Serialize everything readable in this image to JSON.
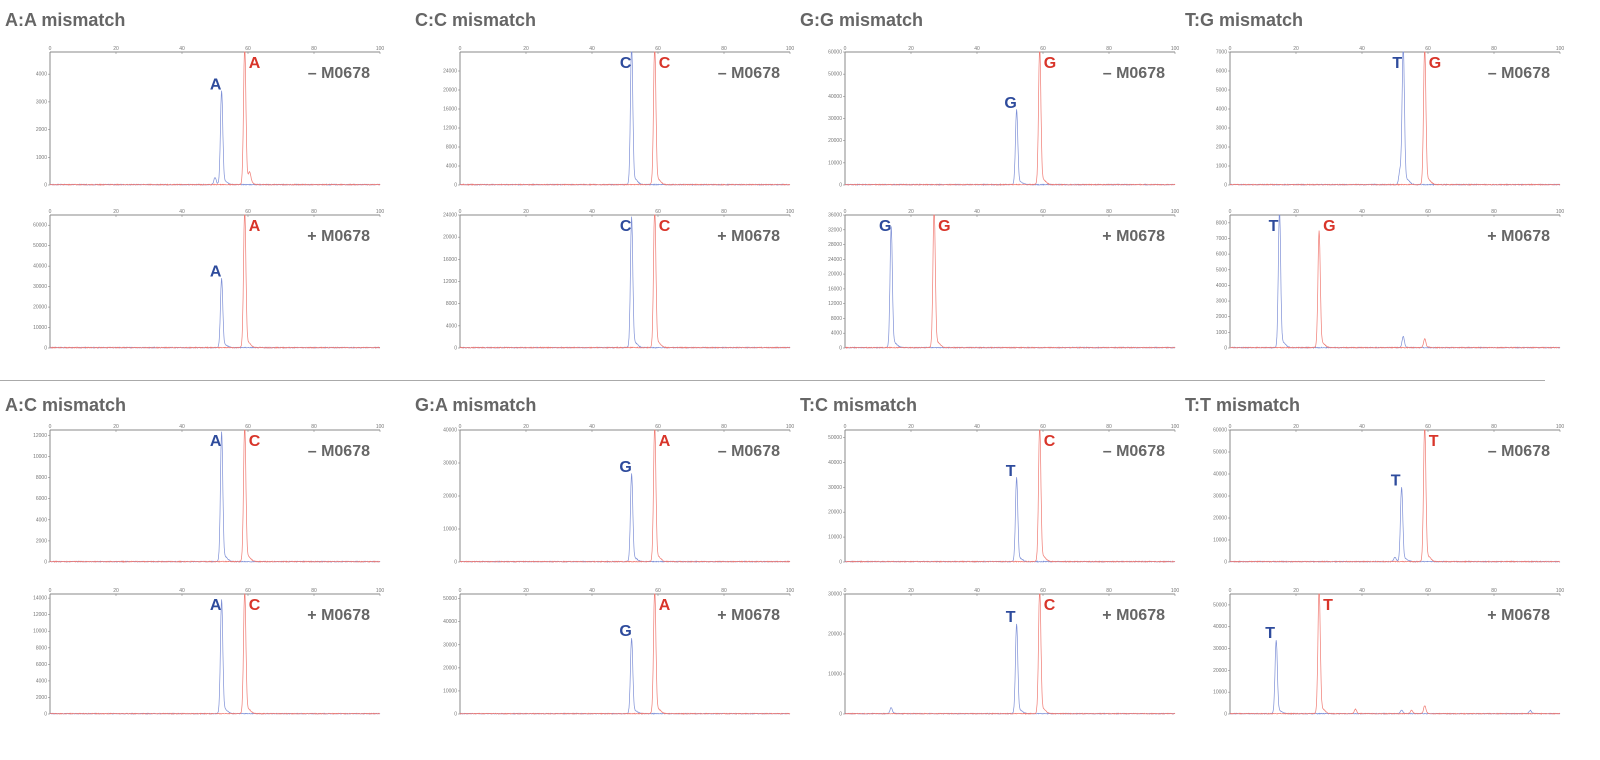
{
  "colors": {
    "blue": "#2e4b9c",
    "red": "#d8352a",
    "title": "#666666"
  },
  "chart_data": [
    {
      "title": "A:A mismatch",
      "plots": [
        {
          "type": "line",
          "condition": "– M0678",
          "xlim": [
            0,
            100
          ],
          "xticks": [
            0,
            20,
            40,
            60,
            80,
            100
          ],
          "ylim": [
            0,
            4800
          ],
          "yticks": [
            0,
            1000,
            2000,
            3000,
            4000
          ],
          "blue_peaks": [
            [
              52,
              3300
            ],
            [
              50,
              250
            ]
          ],
          "red_peaks": [
            [
              59,
              4900
            ],
            [
              60.5,
              300
            ]
          ],
          "labels": [
            {
              "text": "A",
              "color": "blue",
              "x": 52
            },
            {
              "text": "A",
              "color": "red",
              "x": 59
            }
          ]
        },
        {
          "type": "line",
          "condition": "+ M0678",
          "xlim": [
            0,
            100
          ],
          "xticks": [
            0,
            20,
            40,
            60,
            80,
            100
          ],
          "ylim": [
            0,
            65000
          ],
          "yticks": [
            0,
            10000,
            20000,
            30000,
            40000,
            50000,
            60000
          ],
          "blue_peaks": [
            [
              52,
              33000
            ]
          ],
          "red_peaks": [
            [
              59,
              66000
            ]
          ],
          "labels": [
            {
              "text": "A",
              "color": "blue",
              "x": 52
            },
            {
              "text": "A",
              "color": "red",
              "x": 59
            }
          ]
        }
      ]
    },
    {
      "title": "C:C mismatch",
      "plots": [
        {
          "type": "line",
          "condition": "– M0678",
          "xlim": [
            0,
            100
          ],
          "xticks": [
            0,
            20,
            40,
            60,
            80,
            100
          ],
          "ylim": [
            0,
            28000
          ],
          "yticks": [
            0,
            4000,
            8000,
            12000,
            16000,
            20000,
            24000
          ],
          "blue_peaks": [
            [
              52,
              29000
            ]
          ],
          "red_peaks": [
            [
              59,
              29000
            ]
          ],
          "labels": [
            {
              "text": "C",
              "color": "blue",
              "x": 52
            },
            {
              "text": "C",
              "color": "red",
              "x": 59
            }
          ]
        },
        {
          "type": "line",
          "condition": "+ M0678",
          "xlim": [
            0,
            100
          ],
          "xticks": [
            0,
            20,
            40,
            60,
            80,
            100
          ],
          "ylim": [
            0,
            24000
          ],
          "yticks": [
            0,
            4000,
            8000,
            12000,
            16000,
            20000,
            24000
          ],
          "blue_peaks": [
            [
              52,
              23000
            ]
          ],
          "red_peaks": [
            [
              59,
              25000
            ]
          ],
          "labels": [
            {
              "text": "C",
              "color": "blue",
              "x": 52
            },
            {
              "text": "C",
              "color": "red",
              "x": 59
            }
          ]
        }
      ]
    },
    {
      "title": "G:G mismatch",
      "plots": [
        {
          "type": "line",
          "condition": "– M0678",
          "xlim": [
            0,
            100
          ],
          "xticks": [
            0,
            20,
            40,
            60,
            80,
            100
          ],
          "ylim": [
            0,
            60000
          ],
          "yticks": [
            0,
            10000,
            20000,
            30000,
            40000,
            50000,
            60000
          ],
          "blue_peaks": [
            [
              52,
              33000
            ]
          ],
          "red_peaks": [
            [
              59,
              61000
            ]
          ],
          "labels": [
            {
              "text": "G",
              "color": "blue",
              "x": 52
            },
            {
              "text": "G",
              "color": "red",
              "x": 59
            }
          ]
        },
        {
          "type": "line",
          "condition": "+ M0678",
          "xlim": [
            0,
            100
          ],
          "xticks": [
            0,
            20,
            40,
            60,
            80,
            100
          ],
          "ylim": [
            0,
            36000
          ],
          "yticks": [
            0,
            4000,
            8000,
            12000,
            16000,
            20000,
            24000,
            28000,
            32000,
            36000
          ],
          "blue_peaks": [
            [
              14,
              32000
            ]
          ],
          "red_peaks": [
            [
              27,
              37000
            ]
          ],
          "labels": [
            {
              "text": "G",
              "color": "blue",
              "x": 14
            },
            {
              "text": "G",
              "color": "red",
              "x": 27
            }
          ]
        }
      ]
    },
    {
      "title": "T:G mismatch",
      "plots": [
        {
          "type": "line",
          "condition": "– M0678",
          "xlim": [
            0,
            100
          ],
          "xticks": [
            0,
            20,
            40,
            60,
            80,
            100
          ],
          "ylim": [
            0,
            7000
          ],
          "yticks": [
            0,
            1000,
            2000,
            3000,
            4000,
            5000,
            6000,
            7000
          ],
          "blue_peaks": [
            [
              52.5,
              7200
            ],
            [
              51.5,
              700
            ]
          ],
          "red_peaks": [
            [
              59,
              7100
            ]
          ],
          "labels": [
            {
              "text": "T",
              "color": "blue",
              "x": 52.5
            },
            {
              "text": "G",
              "color": "red",
              "x": 59
            }
          ]
        },
        {
          "type": "line",
          "condition": "+ M0678",
          "xlim": [
            0,
            100
          ],
          "xticks": [
            0,
            20,
            40,
            60,
            80,
            100
          ],
          "ylim": [
            0,
            8500
          ],
          "yticks": [
            0,
            1000,
            2000,
            3000,
            4000,
            5000,
            6000,
            7000,
            8000
          ],
          "blue_peaks": [
            [
              15,
              8600
            ],
            [
              52.5,
              700
            ]
          ],
          "red_peaks": [
            [
              27,
              7300
            ],
            [
              59,
              550
            ]
          ],
          "labels": [
            {
              "text": "T",
              "color": "blue",
              "x": 15
            },
            {
              "text": "G",
              "color": "red",
              "x": 27
            }
          ]
        }
      ]
    },
    {
      "title": "A:C mismatch",
      "plots": [
        {
          "type": "line",
          "condition": "– M0678",
          "xlim": [
            0,
            100
          ],
          "xticks": [
            0,
            20,
            40,
            60,
            80,
            100
          ],
          "ylim": [
            0,
            12500
          ],
          "yticks": [
            0,
            2000,
            4000,
            6000,
            8000,
            10000,
            12000
          ],
          "blue_peaks": [
            [
              52,
              12000
            ]
          ],
          "red_peaks": [
            [
              59,
              12600
            ]
          ],
          "labels": [
            {
              "text": "A",
              "color": "blue",
              "x": 52
            },
            {
              "text": "C",
              "color": "red",
              "x": 59
            }
          ]
        },
        {
          "type": "line",
          "condition": "+ M0678",
          "xlim": [
            0,
            100
          ],
          "xticks": [
            0,
            20,
            40,
            60,
            80,
            100
          ],
          "ylim": [
            0,
            14500
          ],
          "yticks": [
            0,
            2000,
            4000,
            6000,
            8000,
            10000,
            12000,
            14000
          ],
          "blue_peaks": [
            [
              52,
              13500
            ]
          ],
          "red_peaks": [
            [
              59,
              14600
            ]
          ],
          "labels": [
            {
              "text": "A",
              "color": "blue",
              "x": 52
            },
            {
              "text": "C",
              "color": "red",
              "x": 59
            }
          ]
        }
      ]
    },
    {
      "title": "G:A mismatch",
      "plots": [
        {
          "type": "line",
          "condition": "– M0678",
          "xlim": [
            0,
            100
          ],
          "xticks": [
            0,
            20,
            40,
            60,
            80,
            100
          ],
          "ylim": [
            0,
            40000
          ],
          "yticks": [
            0,
            10000,
            20000,
            30000,
            40000
          ],
          "blue_peaks": [
            [
              52,
              26000
            ]
          ],
          "red_peaks": [
            [
              59,
              40500
            ]
          ],
          "labels": [
            {
              "text": "G",
              "color": "blue",
              "x": 52
            },
            {
              "text": "A",
              "color": "red",
              "x": 59
            }
          ]
        },
        {
          "type": "line",
          "condition": "+ M0678",
          "xlim": [
            0,
            100
          ],
          "xticks": [
            0,
            20,
            40,
            60,
            80,
            100
          ],
          "ylim": [
            0,
            52000
          ],
          "yticks": [
            0,
            10000,
            20000,
            30000,
            40000,
            50000
          ],
          "blue_peaks": [
            [
              52,
              32000
            ]
          ],
          "red_peaks": [
            [
              59,
              53000
            ]
          ],
          "labels": [
            {
              "text": "G",
              "color": "blue",
              "x": 52
            },
            {
              "text": "A",
              "color": "red",
              "x": 59
            }
          ]
        }
      ]
    },
    {
      "title": "T:C mismatch",
      "plots": [
        {
          "type": "line",
          "condition": "– M0678",
          "xlim": [
            0,
            100
          ],
          "xticks": [
            0,
            20,
            40,
            60,
            80,
            100
          ],
          "ylim": [
            0,
            53000
          ],
          "yticks": [
            0,
            10000,
            20000,
            30000,
            40000,
            50000
          ],
          "blue_peaks": [
            [
              52,
              33000
            ]
          ],
          "red_peaks": [
            [
              59,
              54000
            ]
          ],
          "labels": [
            {
              "text": "T",
              "color": "blue",
              "x": 52
            },
            {
              "text": "C",
              "color": "red",
              "x": 59
            }
          ]
        },
        {
          "type": "line",
          "condition": "+ M0678",
          "xlim": [
            0,
            100
          ],
          "xticks": [
            0,
            20,
            40,
            60,
            80,
            100
          ],
          "ylim": [
            0,
            30000
          ],
          "yticks": [
            0,
            10000,
            20000,
            30000
          ],
          "blue_peaks": [
            [
              52,
              22000
            ],
            [
              14,
              1500
            ]
          ],
          "red_peaks": [
            [
              59,
              31000
            ]
          ],
          "labels": [
            {
              "text": "T",
              "color": "blue",
              "x": 52
            },
            {
              "text": "C",
              "color": "red",
              "x": 59
            }
          ]
        }
      ]
    },
    {
      "title": "T:T mismatch",
      "plots": [
        {
          "type": "line",
          "condition": "– M0678",
          "xlim": [
            0,
            100
          ],
          "xticks": [
            0,
            20,
            40,
            60,
            80,
            100
          ],
          "ylim": [
            0,
            60000
          ],
          "yticks": [
            0,
            10000,
            20000,
            30000,
            40000,
            50000,
            60000
          ],
          "blue_peaks": [
            [
              52,
              33000
            ],
            [
              50,
              2000
            ]
          ],
          "red_peaks": [
            [
              59,
              61000
            ]
          ],
          "labels": [
            {
              "text": "T",
              "color": "blue",
              "x": 52
            },
            {
              "text": "T",
              "color": "red",
              "x": 59
            }
          ]
        },
        {
          "type": "line",
          "condition": "+ M0678",
          "xlim": [
            0,
            100
          ],
          "xticks": [
            0,
            20,
            40,
            60,
            80,
            100
          ],
          "ylim": [
            0,
            55000
          ],
          "yticks": [
            0,
            10000,
            20000,
            30000,
            40000,
            50000
          ],
          "blue_peaks": [
            [
              14,
              33000
            ],
            [
              52,
              1500
            ],
            [
              91,
              1500
            ]
          ],
          "red_peaks": [
            [
              27,
              56000
            ],
            [
              38,
              2000
            ],
            [
              59,
              3500
            ],
            [
              55,
              1500
            ]
          ],
          "labels": [
            {
              "text": "T",
              "color": "blue",
              "x": 14
            },
            {
              "text": "T",
              "color": "red",
              "x": 27
            }
          ]
        }
      ]
    }
  ]
}
